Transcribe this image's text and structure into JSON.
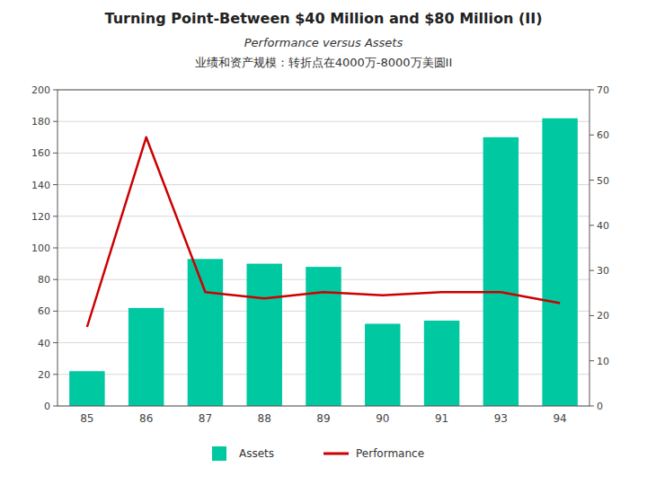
{
  "chart_data": {
    "type": "bar",
    "title": "Turning Point-Between $40 Million and $80 Million (II)",
    "subtitle": [
      "Performance versus Assets",
      "业绩和资产规模：转折点在4000万-8000万美圆II"
    ],
    "categories": [
      "85",
      "86",
      "87",
      "88",
      "89",
      "90",
      "91",
      "93",
      "94"
    ],
    "series": [
      {
        "name": "Assets",
        "type": "bar",
        "color": "#00C8A0",
        "values": [
          22,
          62,
          93,
          90,
          88,
          52,
          54,
          170,
          182
        ]
      },
      {
        "name": "Performance",
        "type": "line",
        "color": "#CC0000",
        "values": [
          50,
          170,
          72,
          68,
          72,
          70,
          72,
          72,
          65
        ]
      }
    ],
    "ylim": [
      0,
      200
    ],
    "yticks": [
      0,
      20,
      40,
      60,
      80,
      100,
      120,
      140,
      160,
      180,
      200
    ],
    "y2lim": [
      0,
      70
    ],
    "y2ticks": [
      0,
      10,
      20,
      30,
      40,
      50,
      60,
      70
    ],
    "grid": true,
    "legend": "bottom"
  }
}
